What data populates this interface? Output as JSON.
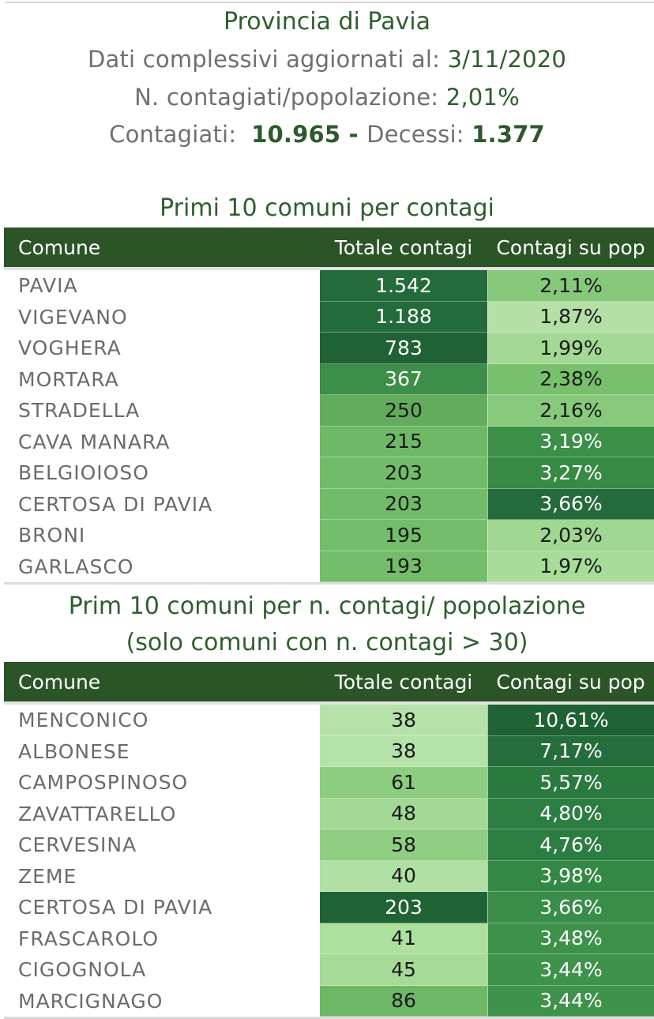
{
  "header": {
    "title": "Provincia di Pavia",
    "updated_label": "Dati complessivi aggiornati al: ",
    "updated_value": "3/11/2020",
    "ratio_label": "N. contagiati/popolazione: ",
    "ratio_value": "2,01%",
    "cases_label": "Contagiati:  ",
    "cases_value": "10.965",
    "sep": " - ",
    "deaths_label": "Decessi: ",
    "deaths_value": "1.377"
  },
  "colors": {
    "header_bg": "#2b5527",
    "title_green": "#2e5e2e",
    "darkest": "#1f5c33",
    "dark": "#2a7a3f",
    "mid_dark": "#3d8e48",
    "mid": "#5aaa5c",
    "light": "#79c36f",
    "lighter": "#9bd48d",
    "lightest": "#b5e2a8"
  },
  "table1": {
    "title": "Primi 10 comuni per contagi",
    "columns": [
      "Comune",
      "Totale contagi",
      "Contagi su pop"
    ],
    "rows": [
      {
        "comune": "PAVIA",
        "totale": "1.542",
        "pct": "2,11%",
        "tot_bg": "#236b3a",
        "tot_fg": "#ffffff",
        "pct_bg": "#86c97a",
        "pct_fg": "#1a1a1a"
      },
      {
        "comune": "VIGEVANO",
        "totale": "1.188",
        "pct": "1,87%",
        "tot_bg": "#236b3a",
        "tot_fg": "#ffffff",
        "pct_bg": "#b4e0a6",
        "pct_fg": "#1a1a1a"
      },
      {
        "comune": "VOGHERA",
        "totale": "783",
        "pct": "1,99%",
        "tot_bg": "#1f6234",
        "tot_fg": "#ffffff",
        "pct_bg": "#a3d994",
        "pct_fg": "#1a1a1a"
      },
      {
        "comune": "MORTARA",
        "totale": "367",
        "pct": "2,38%",
        "tot_bg": "#3d8e48",
        "tot_fg": "#ffffff",
        "pct_bg": "#78c06c",
        "pct_fg": "#1a1a1a"
      },
      {
        "comune": "STRADELLA",
        "totale": "250",
        "pct": "2,16%",
        "tot_bg": "#62ac5c",
        "tot_fg": "#1a1a1a",
        "pct_bg": "#88ca7b",
        "pct_fg": "#1a1a1a"
      },
      {
        "comune": "CAVA MANARA",
        "totale": "215",
        "pct": "3,19%",
        "tot_bg": "#6fb866",
        "tot_fg": "#1a1a1a",
        "pct_bg": "#3b8f47",
        "pct_fg": "#ffffff"
      },
      {
        "comune": "BELGIOIOSO",
        "totale": "203",
        "pct": "3,27%",
        "tot_bg": "#72bb68",
        "tot_fg": "#1a1a1a",
        "pct_bg": "#378a44",
        "pct_fg": "#ffffff"
      },
      {
        "comune": "CERTOSA DI PAVIA",
        "totale": "203",
        "pct": "3,66%",
        "tot_bg": "#72bb68",
        "tot_fg": "#1a1a1a",
        "pct_bg": "#236b3a",
        "pct_fg": "#ffffff"
      },
      {
        "comune": "BRONI",
        "totale": "195",
        "pct": "2,03%",
        "tot_bg": "#74bd6a",
        "tot_fg": "#1a1a1a",
        "pct_bg": "#a0d792",
        "pct_fg": "#1a1a1a"
      },
      {
        "comune": "GARLASCO",
        "totale": "193",
        "pct": "1,97%",
        "tot_bg": "#74bd6a",
        "tot_fg": "#1a1a1a",
        "pct_bg": "#a8dc99",
        "pct_fg": "#1a1a1a"
      }
    ]
  },
  "table2": {
    "title_line1": "Prim 10 comuni per n. contagi/ popolazione",
    "title_line2": "(solo comuni con n. contagi > 30)",
    "columns": [
      "Comune",
      "Totale contagi",
      "Contagi su pop"
    ],
    "rows": [
      {
        "comune": "MENCONICO",
        "totale": "38",
        "pct": "10,61%",
        "tot_bg": "#b5e2a8",
        "tot_fg": "#1a1a1a",
        "pct_bg": "#1f6234",
        "pct_fg": "#ffffff"
      },
      {
        "comune": "ALBONESE",
        "totale": "38",
        "pct": "7,17%",
        "tot_bg": "#b5e2a8",
        "tot_fg": "#1a1a1a",
        "pct_bg": "#256e3b",
        "pct_fg": "#ffffff"
      },
      {
        "comune": "CAMPOSPINOSO",
        "totale": "61",
        "pct": "5,57%",
        "tot_bg": "#8ccd7f",
        "tot_fg": "#1a1a1a",
        "pct_bg": "#2a7a3f",
        "pct_fg": "#ffffff"
      },
      {
        "comune": "ZAVATTARELLO",
        "totale": "48",
        "pct": "4,80%",
        "tot_bg": "#a3d994",
        "tot_fg": "#1a1a1a",
        "pct_bg": "#2c7d41",
        "pct_fg": "#ffffff"
      },
      {
        "comune": "CERVESINA",
        "totale": "58",
        "pct": "4,76%",
        "tot_bg": "#90cf83",
        "tot_fg": "#1a1a1a",
        "pct_bg": "#2c7d41",
        "pct_fg": "#ffffff"
      },
      {
        "comune": "ZEME",
        "totale": "40",
        "pct": "3,98%",
        "tot_bg": "#b0e0a3",
        "tot_fg": "#1a1a1a",
        "pct_bg": "#348846",
        "pct_fg": "#ffffff"
      },
      {
        "comune": "CERTOSA DI PAVIA",
        "totale": "203",
        "pct": "3,66%",
        "tot_bg": "#1f6234",
        "tot_fg": "#ffffff",
        "pct_bg": "#398d48",
        "pct_fg": "#ffffff"
      },
      {
        "comune": "FRASCAROLO",
        "totale": "41",
        "pct": "3,48%",
        "tot_bg": "#addf9f",
        "tot_fg": "#1a1a1a",
        "pct_bg": "#3d914a",
        "pct_fg": "#ffffff"
      },
      {
        "comune": "CIGOGNOLA",
        "totale": "45",
        "pct": "3,44%",
        "tot_bg": "#a6db97",
        "tot_fg": "#1a1a1a",
        "pct_bg": "#3e924b",
        "pct_fg": "#ffffff"
      },
      {
        "comune": "MARCIGNAGO",
        "totale": "86",
        "pct": "3,44%",
        "tot_bg": "#6eb865",
        "tot_fg": "#1a1a1a",
        "pct_bg": "#3e924b",
        "pct_fg": "#ffffff"
      }
    ]
  }
}
